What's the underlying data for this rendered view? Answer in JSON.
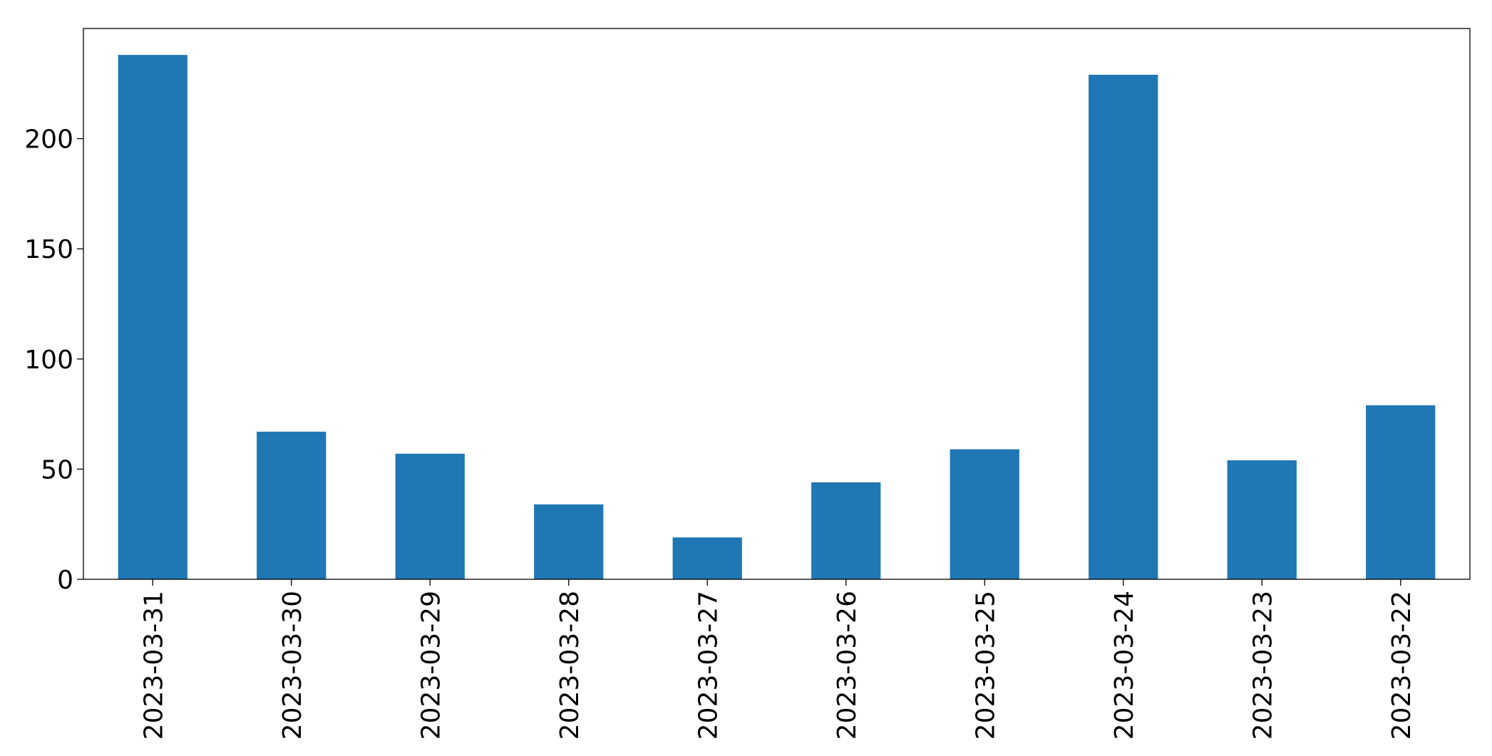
{
  "chart_data": {
    "type": "bar",
    "categories": [
      "2023-03-31",
      "2023-03-30",
      "2023-03-29",
      "2023-03-28",
      "2023-03-27",
      "2023-03-26",
      "2023-03-25",
      "2023-03-24",
      "2023-03-23",
      "2023-03-22"
    ],
    "values": [
      238,
      67,
      57,
      34,
      19,
      44,
      59,
      229,
      54,
      79
    ],
    "color": "#1f77b4",
    "ylim": [
      0,
      250
    ],
    "yticks": [
      0,
      50,
      100,
      150,
      200
    ],
    "grid": false
  }
}
